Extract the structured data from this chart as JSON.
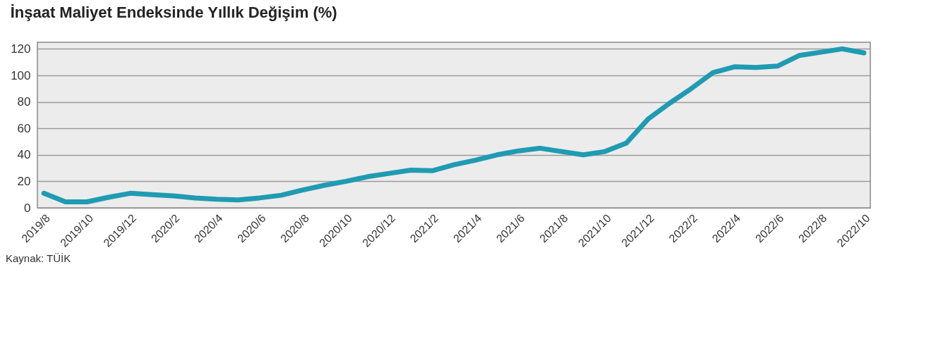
{
  "chart_data": {
    "type": "line",
    "title": "İnşaat Maliyet Endeksinde Yıllık Değişim (%)",
    "categories": [
      "2019/8",
      null,
      "2019/10",
      null,
      "2019/12",
      null,
      "2020/2",
      null,
      "2020/4",
      null,
      "2020/6",
      null,
      "2020/8",
      null,
      "2020/10",
      null,
      "2020/12",
      null,
      "2021/2",
      null,
      "2021/4",
      null,
      "2021/6",
      null,
      "2021/8",
      null,
      "2021/10",
      null,
      "2021/12",
      null,
      "2022/2",
      null,
      "2022/4",
      null,
      "2022/6",
      null,
      "2022/8",
      null,
      "2022/10"
    ],
    "series": [
      {
        "color": "#1f9bb2",
        "values": [
          11,
          4.5,
          4.5,
          8,
          11,
          10,
          9,
          7.5,
          6.5,
          6,
          7.5,
          9.5,
          13.5,
          17,
          20,
          23.5,
          26,
          28.5,
          28,
          32.5,
          36,
          40,
          43,
          45,
          42.5,
          40,
          42.5,
          49,
          67,
          79,
          90,
          102,
          106.5,
          106,
          107,
          115,
          117.5,
          120,
          117
        ]
      }
    ],
    "ylim": [
      0,
      125
    ],
    "yticks": [
      0,
      20,
      40,
      60,
      80,
      100,
      120
    ],
    "grid": "y",
    "marker": "none",
    "line_style": "solid",
    "annotations": [
      "Kaynak: TÜİK"
    ]
  }
}
